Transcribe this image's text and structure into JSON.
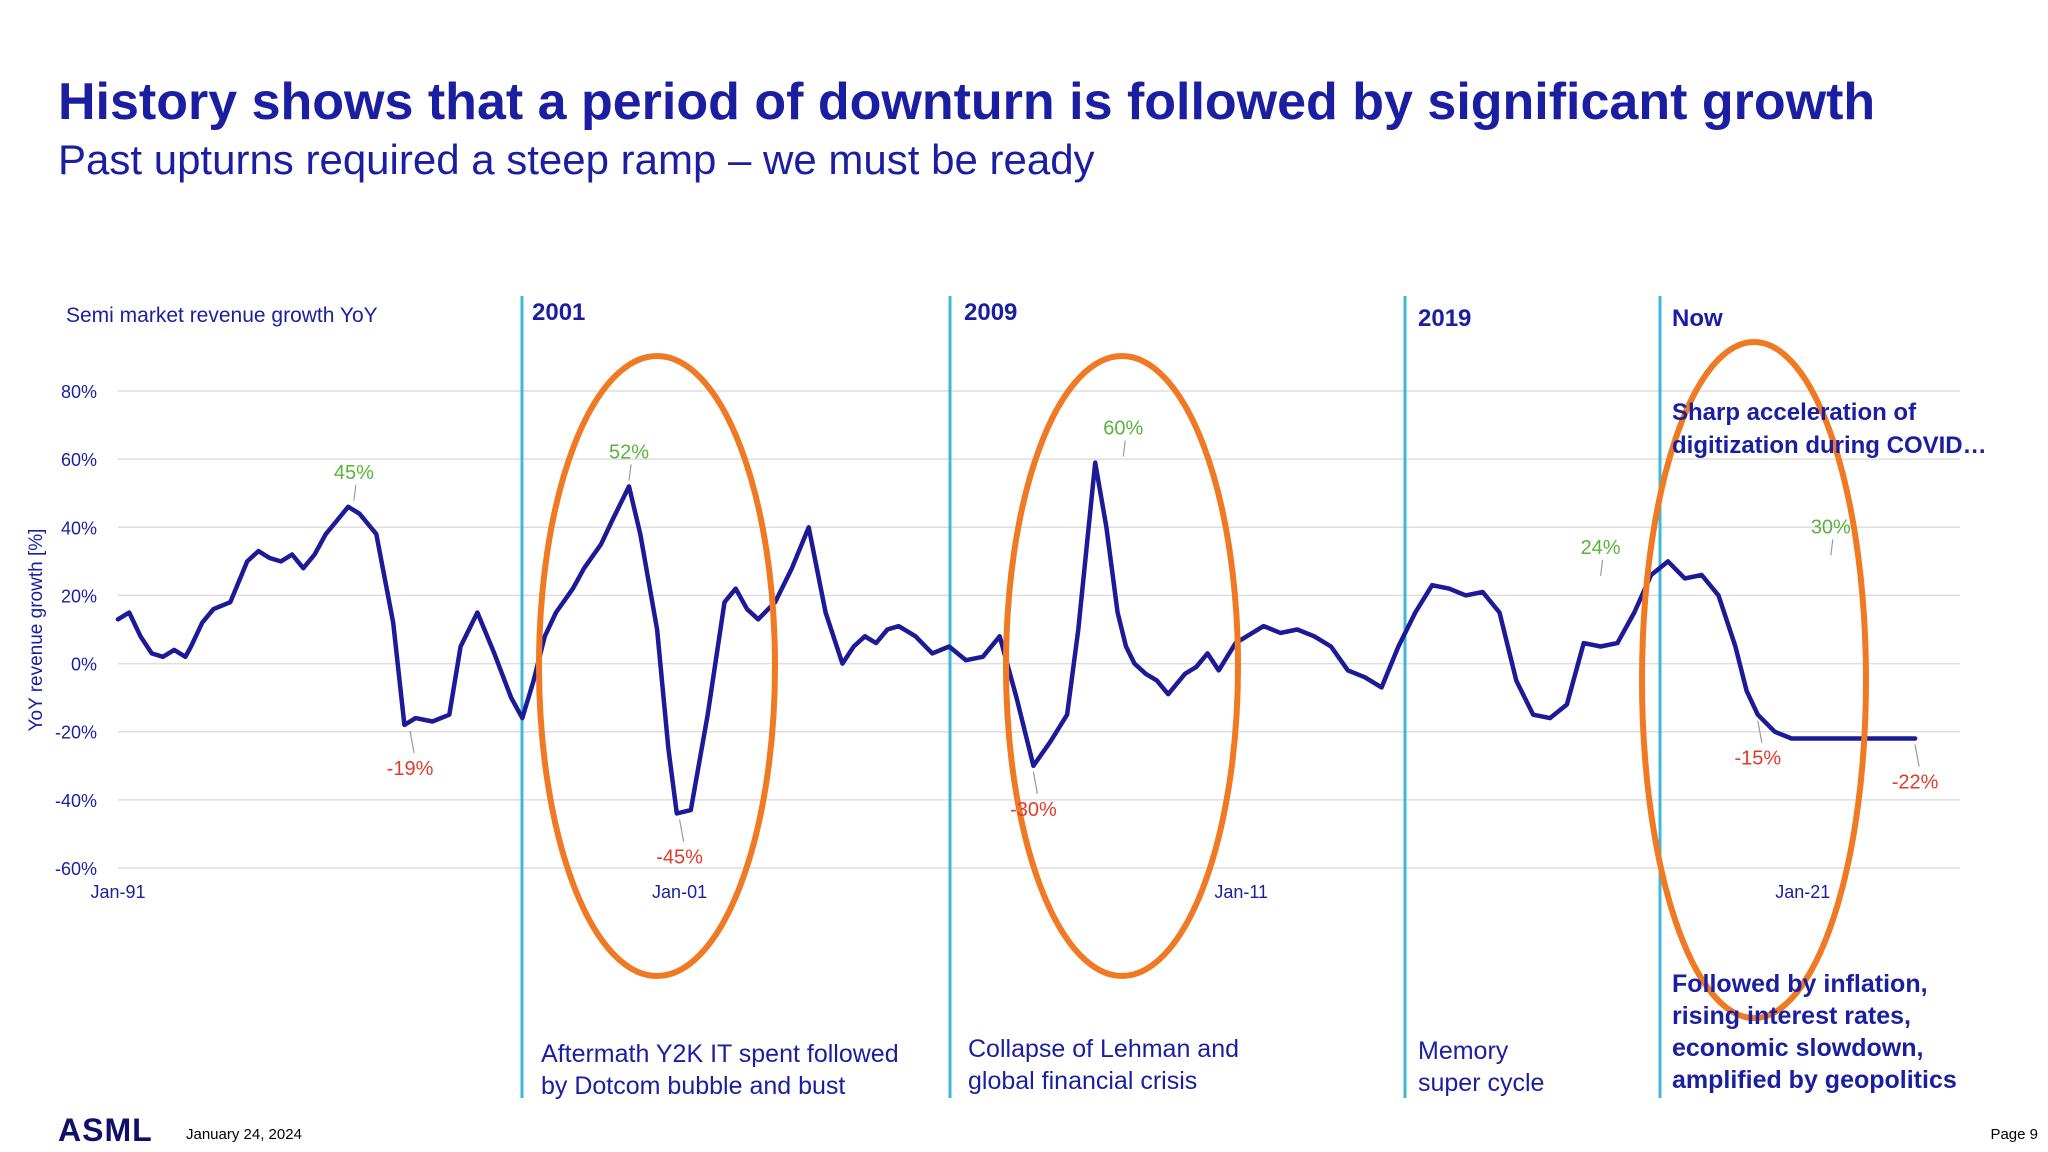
{
  "header": {
    "title": "History shows that a period of downturn is followed by significant growth",
    "subtitle": "Past upturns required a steep ramp – we must be ready"
  },
  "footer": {
    "logo": "ASML",
    "date": "January 24, 2024",
    "page": "Page 9"
  },
  "colors": {
    "title": "#1b1ea1",
    "line": "#1d1a98",
    "divider": "#3fb8d8",
    "ellipse": "#f07a23",
    "positive": "#5ab33e",
    "negative": "#e23a2c",
    "grid": "#dedede"
  },
  "chart_data": {
    "type": "line",
    "title": "Semi market revenue growth YoY",
    "ylabel": "YoY revenue growth [%]",
    "ylim": [
      -60,
      80
    ],
    "xlim": [
      1991.0,
      2023.8
    ],
    "yticks": [
      80,
      60,
      40,
      20,
      0,
      -20,
      -40,
      -60
    ],
    "ytick_labels": [
      "80%",
      "60%",
      "40%",
      "20%",
      "0%",
      "-20%",
      "-40%",
      "-60%"
    ],
    "xticks": [
      {
        "value": 1991.0,
        "label": "Jan-91"
      },
      {
        "value": 2001.0,
        "label": "Jan-01"
      },
      {
        "value": 2011.0,
        "label": "Jan-11"
      },
      {
        "value": 2021.0,
        "label": "Jan-21"
      }
    ],
    "series": [
      {
        "name": "Semi market revenue growth YoY",
        "x": [
          1991.0,
          1991.2,
          1991.4,
          1991.6,
          1991.8,
          1992.0,
          1992.2,
          1992.3,
          1992.5,
          1992.7,
          1993.0,
          1993.3,
          1993.5,
          1993.7,
          1993.9,
          1994.1,
          1994.3,
          1994.5,
          1994.7,
          1994.9,
          1995.1,
          1995.3,
          1995.6,
          1995.9,
          1996.1,
          1996.3,
          1996.6,
          1996.9,
          1997.1,
          1997.4,
          1997.7,
          1998.0,
          1998.2,
          1998.4,
          1998.6,
          1998.8,
          1999.1,
          1999.3,
          1999.6,
          1999.8,
          2000.1,
          2000.3,
          2000.6,
          2000.8,
          2000.95,
          2001.2,
          2001.5,
          2001.8,
          2002.0,
          2002.2,
          2002.4,
          2002.7,
          2003.0,
          2003.3,
          2003.6,
          2003.9,
          2004.1,
          2004.3,
          2004.5,
          2004.7,
          2004.9,
          2005.2,
          2005.5,
          2005.8,
          2006.1,
          2006.4,
          2006.7,
          2007.0,
          2007.3,
          2007.6,
          2007.9,
          2008.1,
          2008.4,
          2008.6,
          2008.8,
          2008.95,
          2009.1,
          2009.3,
          2009.5,
          2009.7,
          2010.0,
          2010.2,
          2010.4,
          2010.6,
          2010.9,
          2011.1,
          2011.4,
          2011.7,
          2012.0,
          2012.3,
          2012.6,
          2012.9,
          2013.2,
          2013.5,
          2013.8,
          2014.1,
          2014.4,
          2014.7,
          2015.0,
          2015.3,
          2015.6,
          2015.9,
          2016.2,
          2016.5,
          2016.8,
          2017.1,
          2017.4,
          2017.7,
          2018.0,
          2018.3,
          2018.6,
          2018.9,
          2019.2,
          2019.5,
          2019.8,
          2020.0,
          2020.2,
          2020.5,
          2020.8,
          2021.0,
          2021.2,
          2021.4,
          2021.6,
          2021.8,
          2022.0,
          2022.2,
          2022.4,
          2022.6,
          2022.8,
          2023.0,
          2023.2,
          2023.4,
          2023.6
        ],
        "values": [
          13,
          15,
          8,
          3,
          2,
          4,
          2,
          5,
          12,
          16,
          18,
          30,
          33,
          31,
          30,
          32,
          28,
          32,
          38,
          42,
          46,
          44,
          38,
          12,
          -18,
          -16,
          -17,
          -15,
          5,
          15,
          3,
          -10,
          -16,
          -5,
          8,
          15,
          22,
          28,
          35,
          42,
          52,
          38,
          10,
          -25,
          -44,
          -43,
          -15,
          18,
          22,
          16,
          13,
          18,
          28,
          40,
          15,
          0,
          5,
          8,
          6,
          10,
          11,
          8,
          3,
          5,
          1,
          2,
          8,
          -10,
          -30,
          -23,
          -15,
          10,
          59,
          40,
          15,
          5,
          0,
          -3,
          -5,
          -9,
          -3,
          -1,
          3,
          -2,
          6,
          8,
          11,
          9,
          10,
          8,
          5,
          -2,
          -4,
          -7,
          5,
          15,
          23,
          22,
          20,
          21,
          15,
          -5,
          -15,
          -16,
          -12,
          6,
          5,
          6,
          15,
          26,
          30,
          25,
          26,
          20,
          5,
          -8,
          -15,
          -20,
          -22,
          -22,
          -22,
          -22,
          -22,
          -22,
          -22,
          -22,
          -22,
          -22,
          -22,
          -22,
          -22,
          -22,
          -22
        ],
        "values_note": "tail points beyond last reading hold last value"
      }
    ],
    "data_labels": [
      {
        "x": 1995.2,
        "y": 46,
        "label": "45%",
        "sign": "pos"
      },
      {
        "x": 1996.2,
        "y": -18,
        "label": "-19%",
        "sign": "neg"
      },
      {
        "x": 2000.1,
        "y": 52,
        "label": "52%",
        "sign": "pos"
      },
      {
        "x": 2001.0,
        "y": -44,
        "label": "-45%",
        "sign": "neg"
      },
      {
        "x": 2008.9,
        "y": 59,
        "label": "60%",
        "sign": "pos"
      },
      {
        "x": 2007.3,
        "y": -30,
        "label": "-30%",
        "sign": "neg"
      },
      {
        "x": 2017.4,
        "y": 24,
        "label": "24%",
        "sign": "pos"
      },
      {
        "x": 2020.2,
        "y": -15,
        "label": "-15%",
        "sign": "neg"
      },
      {
        "x": 2021.5,
        "y": 30,
        "label": "30%",
        "sign": "pos"
      },
      {
        "x": 2023.0,
        "y": -22,
        "label": "-22%",
        "sign": "neg"
      }
    ],
    "periods": [
      {
        "label": "2001",
        "description": [
          "Aftermath Y2K IT spent followed",
          "by Dotcom bubble and bust"
        ]
      },
      {
        "label": "2009",
        "description": [
          "Collapse of Lehman and",
          "global financial crisis"
        ]
      },
      {
        "label": "2019",
        "description": [
          "Memory",
          "super cycle"
        ]
      },
      {
        "label": "Now",
        "description": [
          "Followed by inflation,",
          "rising interest rates,",
          "economic slowdown,",
          "amplified by geopolitics"
        ],
        "note": [
          "Sharp acceleration of",
          "digitization during COVID…"
        ]
      }
    ]
  }
}
